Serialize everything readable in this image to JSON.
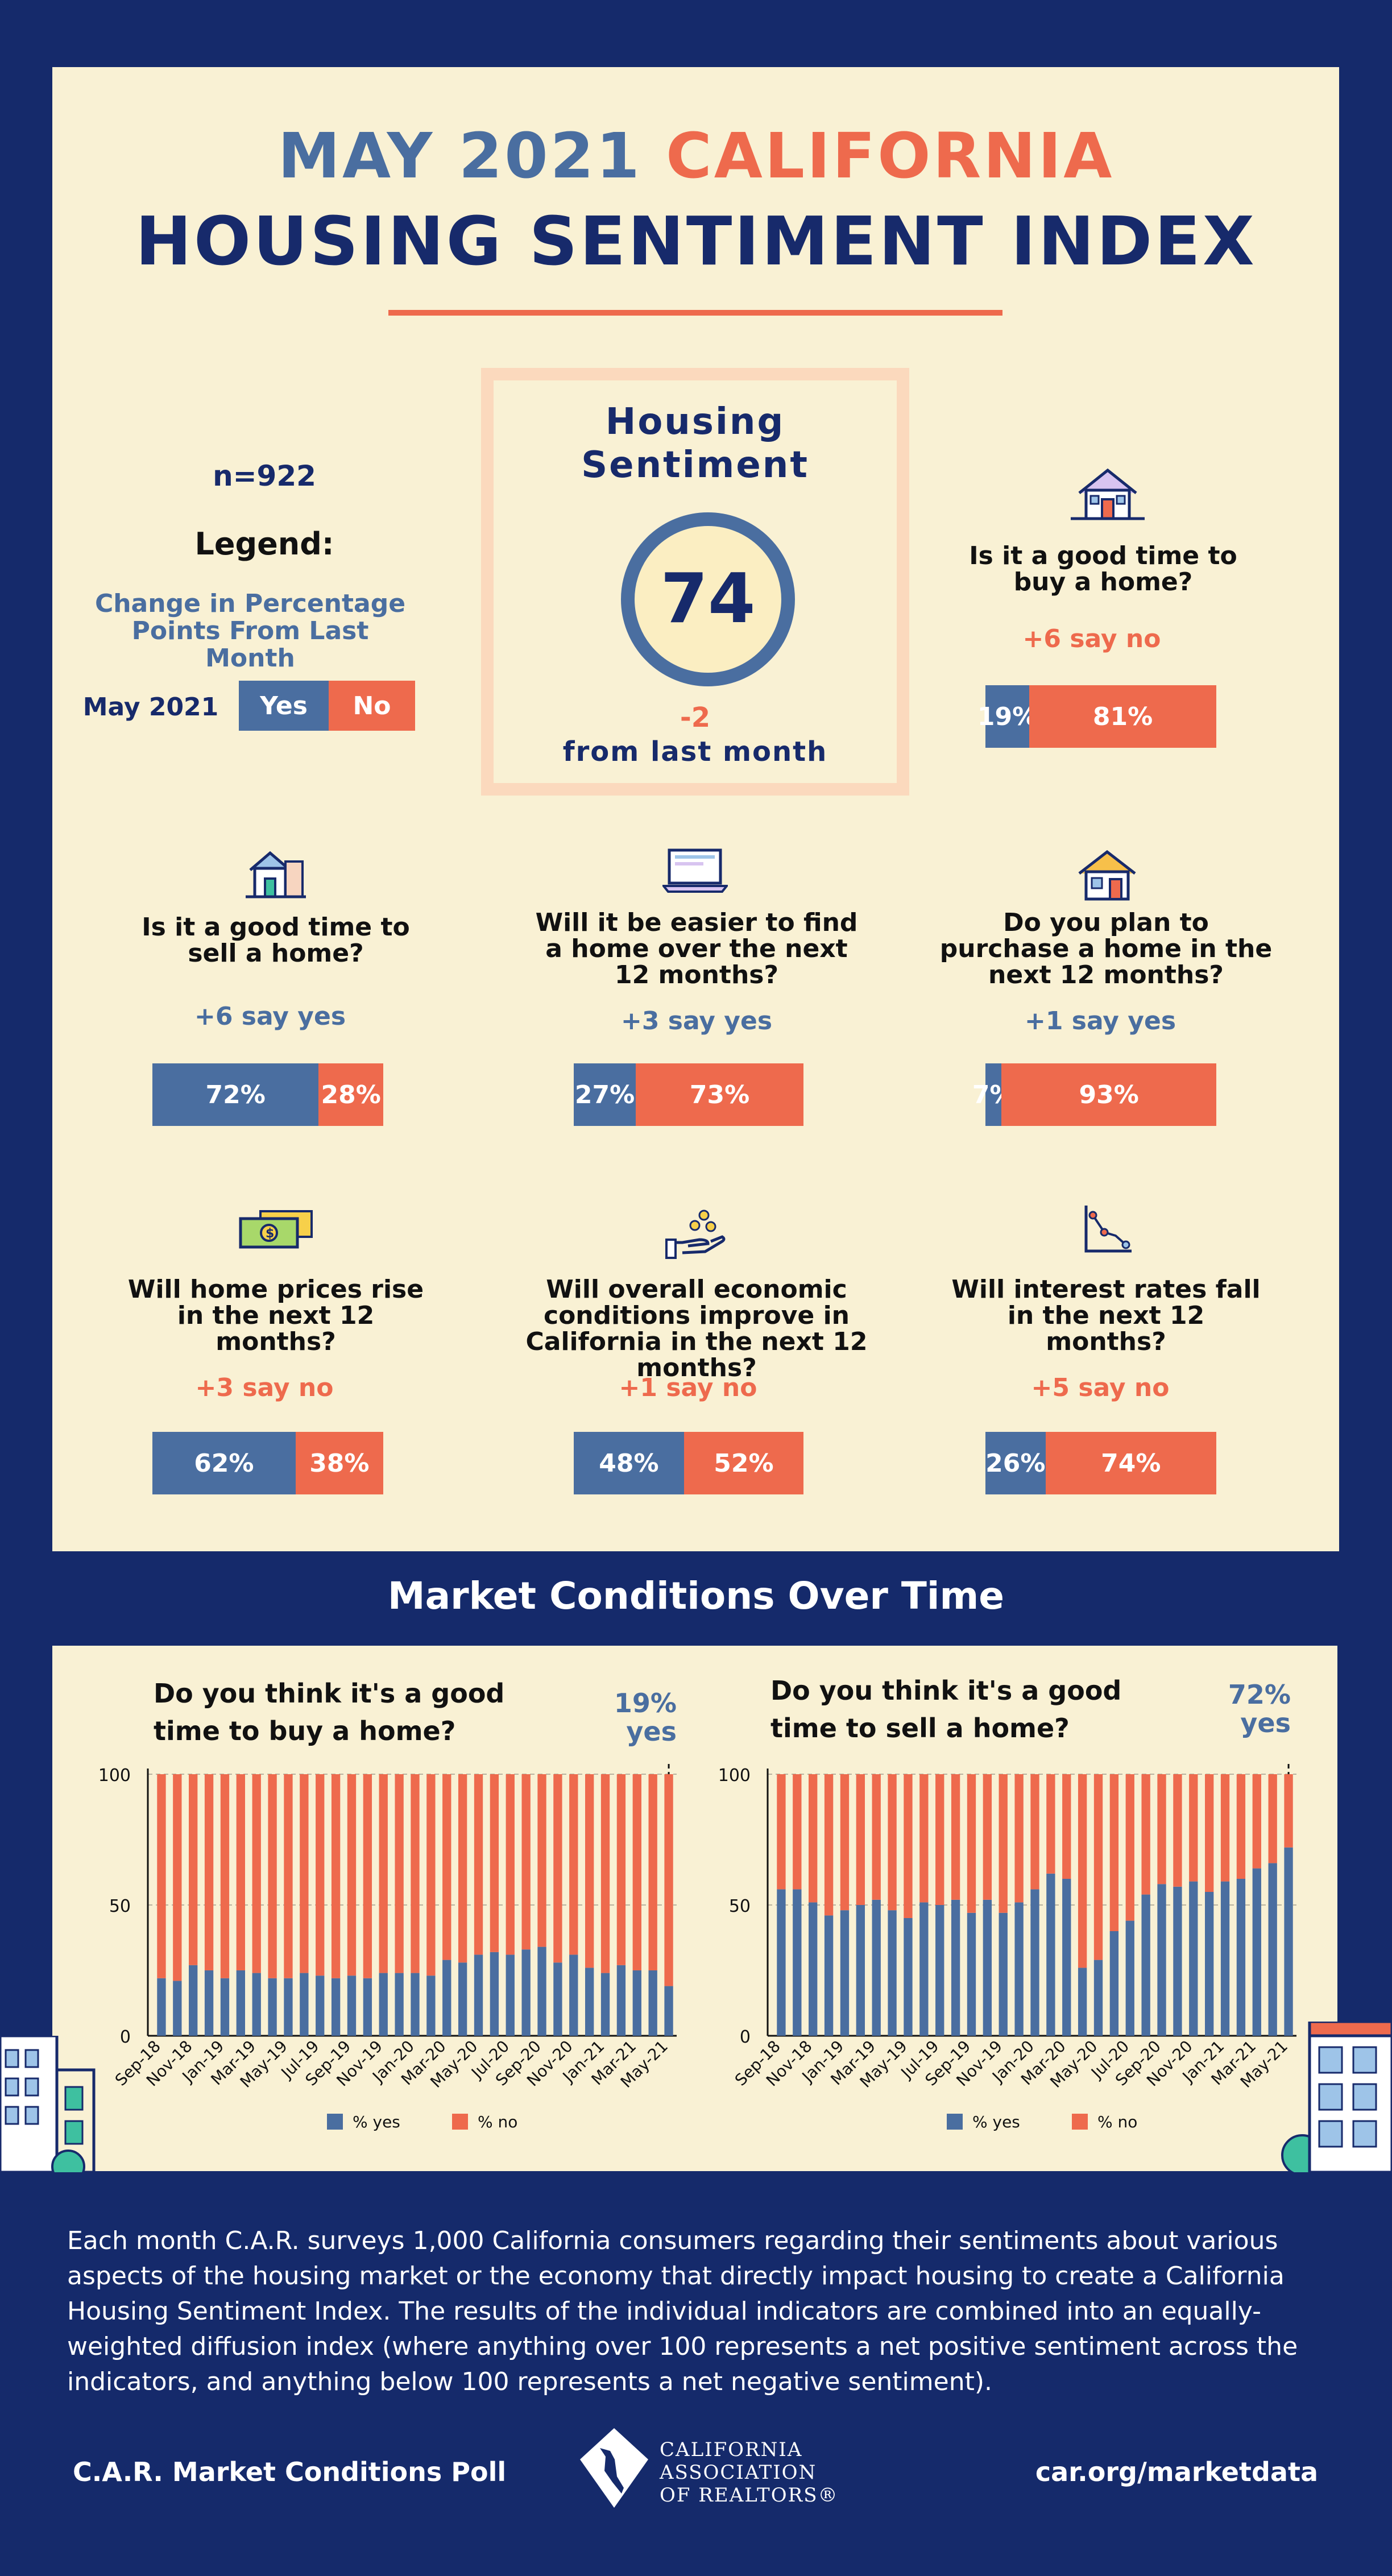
{
  "title": {
    "month_year": "MAY 2021",
    "state": "CALIFORNIA",
    "line2": "HOUSING SENTIMENT INDEX"
  },
  "sample": "n=922",
  "legend": {
    "heading": "Legend:",
    "description": "Change in Percentage Points From Last Month",
    "period": "May 2021",
    "yes": "Yes",
    "no": "No"
  },
  "sentiment": {
    "title_line1": "Housing",
    "title_line2": "Sentiment",
    "value": "74",
    "change": "-2",
    "change_label": "from last month"
  },
  "questions": [
    {
      "id": "buy",
      "text": "Is it a good time to buy a home?",
      "change": "+6 say no",
      "change_color": "#ee6a4d",
      "yes": 19,
      "no": 81,
      "yes_label": "19%",
      "no_label": "81%",
      "icon": "house-icon"
    },
    {
      "id": "sell",
      "text": "Is it a good time to sell a home?",
      "change": "+6 say yes",
      "change_color": "#4a6ea0",
      "yes": 72,
      "no": 28,
      "yes_label": "72%",
      "no_label": "28%",
      "icon": "house-for-sale-icon"
    },
    {
      "id": "find",
      "text": "Will it be easier to find a home over the next 12 months?",
      "change": "+3 say yes",
      "change_color": "#4a6ea0",
      "yes": 27,
      "no": 73,
      "yes_label": "27%",
      "no_label": "73%",
      "icon": "laptop-icon"
    },
    {
      "id": "purchase",
      "text": "Do you plan to purchase a home in the next 12 months?",
      "change": "+1 say yes",
      "change_color": "#4a6ea0",
      "yes": 7,
      "no": 93,
      "yes_label": "7%",
      "no_label": "93%",
      "icon": "home-icon"
    },
    {
      "id": "prices",
      "text": "Will home prices rise in the next 12 months?",
      "change": "+3 say no",
      "change_color": "#ee6a4d",
      "yes": 62,
      "no": 38,
      "yes_label": "62%",
      "no_label": "38%",
      "icon": "money-icon"
    },
    {
      "id": "economy",
      "text": "Will overall economic conditions improve in California in the next 12 months?",
      "change": "+1 say no",
      "change_color": "#ee6a4d",
      "yes": 48,
      "no": 52,
      "yes_label": "48%",
      "no_label": "52%",
      "icon": "hand-coins-icon"
    },
    {
      "id": "rates",
      "text": "Will interest rates fall in the next 12 months?",
      "change": "+5 say no",
      "change_color": "#ee6a4d",
      "yes": 26,
      "no": 74,
      "yes_label": "26%",
      "no_label": "74%",
      "icon": "falling-chart-icon"
    }
  ],
  "section_title": "Market Conditions Over Time",
  "chart_data": [
    {
      "type": "bar",
      "stacked": true,
      "title": "Do you think it's a good time to buy a home?",
      "latest_label": "19% yes",
      "ylim": [
        0,
        100
      ],
      "yticks": [
        0,
        50,
        100
      ],
      "grid": true,
      "legend_position": "bottom",
      "tick_labels": [
        "Sep-18",
        "Nov-18",
        "Jan-19",
        "Mar-19",
        "May-19",
        "Jul-19",
        "Sep-19",
        "Nov-19",
        "Jan-20",
        "Mar-20",
        "May-20",
        "Jul-20",
        "Sep-20",
        "Nov-20",
        "Jan-21",
        "Mar-21",
        "May-21"
      ],
      "categories": [
        "Sep-18",
        "Oct-18",
        "Nov-18",
        "Dec-18",
        "Jan-19",
        "Feb-19",
        "Mar-19",
        "Apr-19",
        "May-19",
        "Jun-19",
        "Jul-19",
        "Aug-19",
        "Sep-19",
        "Oct-19",
        "Nov-19",
        "Dec-19",
        "Jan-20",
        "Feb-20",
        "Mar-20",
        "Apr-20",
        "May-20",
        "Jun-20",
        "Jul-20",
        "Aug-20",
        "Sep-20",
        "Oct-20",
        "Nov-20",
        "Dec-20",
        "Jan-21",
        "Feb-21",
        "Mar-21",
        "Apr-21",
        "May-21"
      ],
      "series": [
        {
          "name": "% yes",
          "color": "#4a6ea0",
          "values": [
            22,
            21,
            27,
            25,
            22,
            25,
            24,
            22,
            22,
            24,
            23,
            22,
            23,
            22,
            24,
            24,
            24,
            23,
            29,
            28,
            31,
            32,
            31,
            33,
            34,
            28,
            31,
            26,
            24,
            27,
            25,
            25,
            19
          ]
        },
        {
          "name": "% no",
          "color": "#ee6a4d",
          "values": [
            78,
            79,
            73,
            75,
            78,
            75,
            76,
            78,
            78,
            76,
            77,
            78,
            77,
            78,
            76,
            76,
            76,
            77,
            71,
            72,
            69,
            68,
            69,
            67,
            66,
            72,
            69,
            74,
            76,
            73,
            75,
            75,
            81
          ]
        }
      ]
    },
    {
      "type": "bar",
      "stacked": true,
      "title": "Do you think it's a good time to sell a home?",
      "latest_label": "72% yes",
      "ylim": [
        0,
        100
      ],
      "yticks": [
        0,
        50,
        100
      ],
      "grid": true,
      "legend_position": "bottom",
      "tick_labels": [
        "Sep-18",
        "Nov-18",
        "Jan-19",
        "Mar-19",
        "May-19",
        "Jul-19",
        "Sep-19",
        "Nov-19",
        "Jan-20",
        "Mar-20",
        "May-20",
        "Jul-20",
        "Sep-20",
        "Nov-20",
        "Jan-21",
        "Mar-21",
        "May-21"
      ],
      "categories": [
        "Sep-18",
        "Oct-18",
        "Nov-18",
        "Dec-18",
        "Jan-19",
        "Feb-19",
        "Mar-19",
        "Apr-19",
        "May-19",
        "Jun-19",
        "Jul-19",
        "Aug-19",
        "Sep-19",
        "Oct-19",
        "Nov-19",
        "Dec-19",
        "Jan-20",
        "Feb-20",
        "Mar-20",
        "Apr-20",
        "May-20",
        "Jun-20",
        "Jul-20",
        "Aug-20",
        "Sep-20",
        "Oct-20",
        "Nov-20",
        "Dec-20",
        "Jan-21",
        "Feb-21",
        "Mar-21",
        "Apr-21",
        "May-21"
      ],
      "series": [
        {
          "name": "% yes",
          "color": "#4a6ea0",
          "values": [
            56,
            56,
            51,
            46,
            48,
            50,
            52,
            48,
            45,
            51,
            50,
            52,
            47,
            52,
            47,
            51,
            56,
            62,
            60,
            26,
            29,
            40,
            44,
            54,
            58,
            57,
            59,
            55,
            59,
            60,
            64,
            66,
            72
          ]
        },
        {
          "name": "% no",
          "color": "#ee6a4d",
          "values": [
            44,
            44,
            49,
            54,
            52,
            50,
            48,
            52,
            55,
            49,
            50,
            48,
            53,
            48,
            53,
            49,
            44,
            38,
            40,
            74,
            71,
            60,
            56,
            46,
            42,
            43,
            41,
            45,
            41,
            40,
            36,
            34,
            28
          ]
        }
      ]
    }
  ],
  "footer": {
    "description": "Each month C.A.R. surveys 1,000 California consumers regarding their sentiments about various aspects of the housing market or the economy that directly impact housing to create a California Housing Sentiment Index. The results of the individual indicators are combined into an equally-weighted diffusion index (where anything over 100 represents a net positive sentiment across the indicators, and anything below 100 represents a net negative sentiment).",
    "poll_name": "C.A.R. Market Conditions Poll",
    "url": "car.org/marketdata",
    "logo_line1": "CALIFORNIA",
    "logo_line2": "ASSOCIATION",
    "logo_line3": "OF REALTORS®"
  }
}
